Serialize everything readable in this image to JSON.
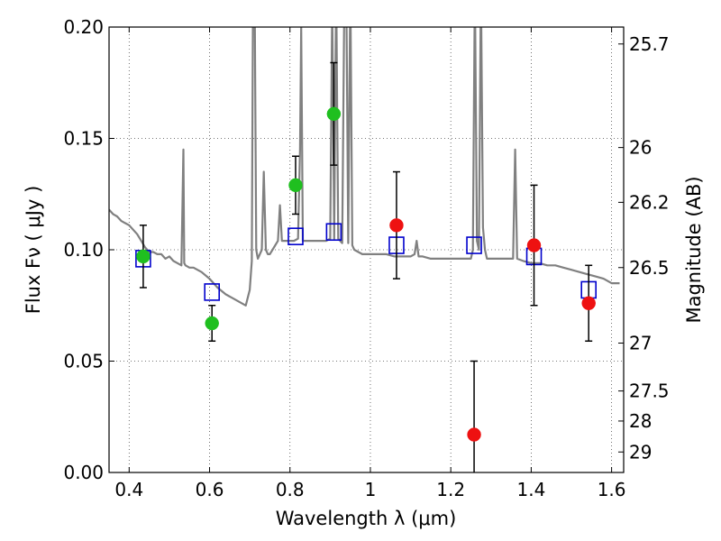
{
  "chart_data": {
    "type": "scatter",
    "xlabel": "Wavelength  λ (μm)",
    "ylabel": "Flux  Fν  ( μJy )",
    "y2label": "Magnitude (AB)",
    "xlim": [
      0.35,
      1.63
    ],
    "ylim": [
      0.0,
      0.2
    ],
    "grid": true,
    "x_ticks": [
      0.4,
      0.6,
      0.8,
      1.0,
      1.2,
      1.4,
      1.6
    ],
    "x_tick_labels": [
      "0.4",
      "0.6",
      "0.8",
      "1",
      "1.2",
      "1.4",
      "1.6"
    ],
    "y_ticks": [
      0.0,
      0.05,
      0.1,
      0.15,
      0.2
    ],
    "y_tick_labels": [
      "0.00",
      "0.05",
      "0.10",
      "0.15",
      "0.20"
    ],
    "y2_ticks": [
      {
        "label": "25.7",
        "flux": 0.1924
      },
      {
        "label": "26",
        "flux": 0.1459
      },
      {
        "label": "26.2",
        "flux": 0.1213
      },
      {
        "label": "26.5",
        "flux": 0.092
      },
      {
        "label": "27",
        "flux": 0.0581
      },
      {
        "label": "27.5",
        "flux": 0.0366
      },
      {
        "label": "28",
        "flux": 0.0231
      },
      {
        "label": "29",
        "flux": 0.0092
      }
    ],
    "colors": {
      "green": "#1fbf1f",
      "red": "#ee1111",
      "model": "#808080",
      "box": "#0000cc"
    },
    "series": [
      {
        "color": "green",
        "marker": "circle",
        "points": [
          {
            "x": 0.435,
            "y": 0.097,
            "err": 0.014
          },
          {
            "x": 0.606,
            "y": 0.067,
            "err": 0.008
          },
          {
            "x": 0.814,
            "y": 0.129,
            "err": 0.013
          },
          {
            "x": 0.909,
            "y": 0.161,
            "err": 0.023
          }
        ]
      },
      {
        "color": "red",
        "marker": "circle",
        "points": [
          {
            "x": 1.065,
            "y": 0.111,
            "err": 0.024
          },
          {
            "x": 1.258,
            "y": 0.017,
            "err": 0.033
          },
          {
            "x": 1.407,
            "y": 0.102,
            "err": 0.027
          },
          {
            "x": 1.543,
            "y": 0.076,
            "err": 0.017
          }
        ]
      },
      {
        "color": "box",
        "marker": "square",
        "points": [
          {
            "x": 0.435,
            "y": 0.096
          },
          {
            "x": 0.606,
            "y": 0.081
          },
          {
            "x": 0.814,
            "y": 0.106
          },
          {
            "x": 0.909,
            "y": 0.108
          },
          {
            "x": 1.065,
            "y": 0.102
          },
          {
            "x": 1.258,
            "y": 0.102
          },
          {
            "x": 1.407,
            "y": 0.097
          },
          {
            "x": 1.543,
            "y": 0.082
          }
        ]
      }
    ],
    "model_spectrum": {
      "color": "model",
      "x": [
        0.35,
        0.36,
        0.37,
        0.38,
        0.39,
        0.4,
        0.41,
        0.42,
        0.43,
        0.44,
        0.45,
        0.46,
        0.47,
        0.48,
        0.49,
        0.5,
        0.51,
        0.52,
        0.53,
        0.535,
        0.537,
        0.54,
        0.55,
        0.56,
        0.58,
        0.6,
        0.62,
        0.64,
        0.66,
        0.68,
        0.69,
        0.7,
        0.705,
        0.708,
        0.712,
        0.716,
        0.72,
        0.73,
        0.735,
        0.74,
        0.745,
        0.75,
        0.76,
        0.77,
        0.775,
        0.78,
        0.79,
        0.8,
        0.81,
        0.82,
        0.825,
        0.828,
        0.832,
        0.84,
        0.85,
        0.86,
        0.87,
        0.88,
        0.89,
        0.9,
        0.905,
        0.91,
        0.915,
        0.92,
        0.925,
        0.93,
        0.935,
        0.94,
        0.945,
        0.95,
        0.955,
        0.96,
        0.97,
        0.98,
        0.99,
        1.0,
        1.02,
        1.04,
        1.06,
        1.08,
        1.1,
        1.11,
        1.115,
        1.12,
        1.13,
        1.15,
        1.17,
        1.19,
        1.21,
        1.23,
        1.25,
        1.255,
        1.26,
        1.265,
        1.27,
        1.275,
        1.28,
        1.285,
        1.29,
        1.3,
        1.32,
        1.34,
        1.355,
        1.36,
        1.365,
        1.38,
        1.4,
        1.42,
        1.44,
        1.46,
        1.48,
        1.5,
        1.52,
        1.54,
        1.56,
        1.58,
        1.6,
        1.62
      ],
      "y": [
        0.118,
        0.116,
        0.115,
        0.113,
        0.112,
        0.111,
        0.109,
        0.107,
        0.104,
        0.101,
        0.099,
        0.099,
        0.098,
        0.098,
        0.096,
        0.097,
        0.095,
        0.094,
        0.093,
        0.145,
        0.094,
        0.093,
        0.092,
        0.092,
        0.09,
        0.087,
        0.083,
        0.08,
        0.078,
        0.076,
        0.075,
        0.082,
        0.095,
        0.21,
        0.22,
        0.1,
        0.096,
        0.1,
        0.135,
        0.1,
        0.098,
        0.098,
        0.101,
        0.104,
        0.12,
        0.104,
        0.104,
        0.104,
        0.104,
        0.105,
        0.145,
        0.2,
        0.104,
        0.104,
        0.104,
        0.104,
        0.104,
        0.104,
        0.104,
        0.105,
        0.21,
        0.105,
        0.22,
        0.105,
        0.104,
        0.103,
        0.21,
        0.22,
        0.103,
        0.22,
        0.102,
        0.1,
        0.099,
        0.098,
        0.098,
        0.098,
        0.098,
        0.098,
        0.097,
        0.097,
        0.097,
        0.098,
        0.104,
        0.097,
        0.097,
        0.096,
        0.096,
        0.096,
        0.096,
        0.096,
        0.096,
        0.1,
        0.22,
        0.104,
        0.1,
        0.22,
        0.11,
        0.1,
        0.096,
        0.096,
        0.096,
        0.096,
        0.096,
        0.145,
        0.096,
        0.095,
        0.094,
        0.094,
        0.093,
        0.093,
        0.092,
        0.091,
        0.09,
        0.089,
        0.088,
        0.087,
        0.085,
        0.085
      ]
    }
  }
}
